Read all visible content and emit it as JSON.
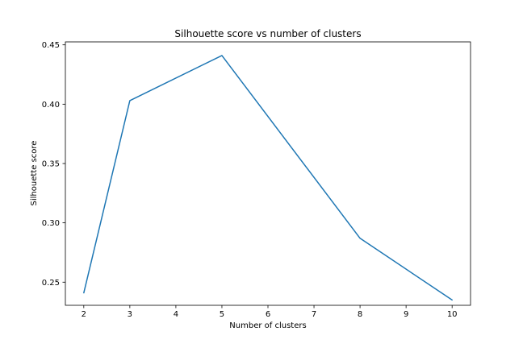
{
  "chart_data": {
    "type": "line",
    "title": "Silhouette score vs number of clusters",
    "xlabel": "Number of clusters",
    "ylabel": "Silhouette score",
    "x": [
      2,
      3,
      5,
      8,
      10
    ],
    "series": [
      {
        "values": [
          0.241,
          0.403,
          0.441,
          0.287,
          0.235
        ]
      }
    ],
    "xticks": [
      2,
      3,
      4,
      5,
      6,
      7,
      8,
      9,
      10
    ],
    "xtick_labels": [
      "2",
      "3",
      "4",
      "5",
      "6",
      "7",
      "8",
      "9",
      "10"
    ],
    "yticks": [
      0.25,
      0.3,
      0.35,
      0.4,
      0.45
    ],
    "ytick_labels": [
      "0.25",
      "0.30",
      "0.35",
      "0.40",
      "0.45"
    ],
    "xlim": [
      1.6,
      10.4
    ],
    "ylim": [
      0.2305,
      0.4525
    ],
    "grid": false,
    "line_color": "#1f77b4"
  }
}
